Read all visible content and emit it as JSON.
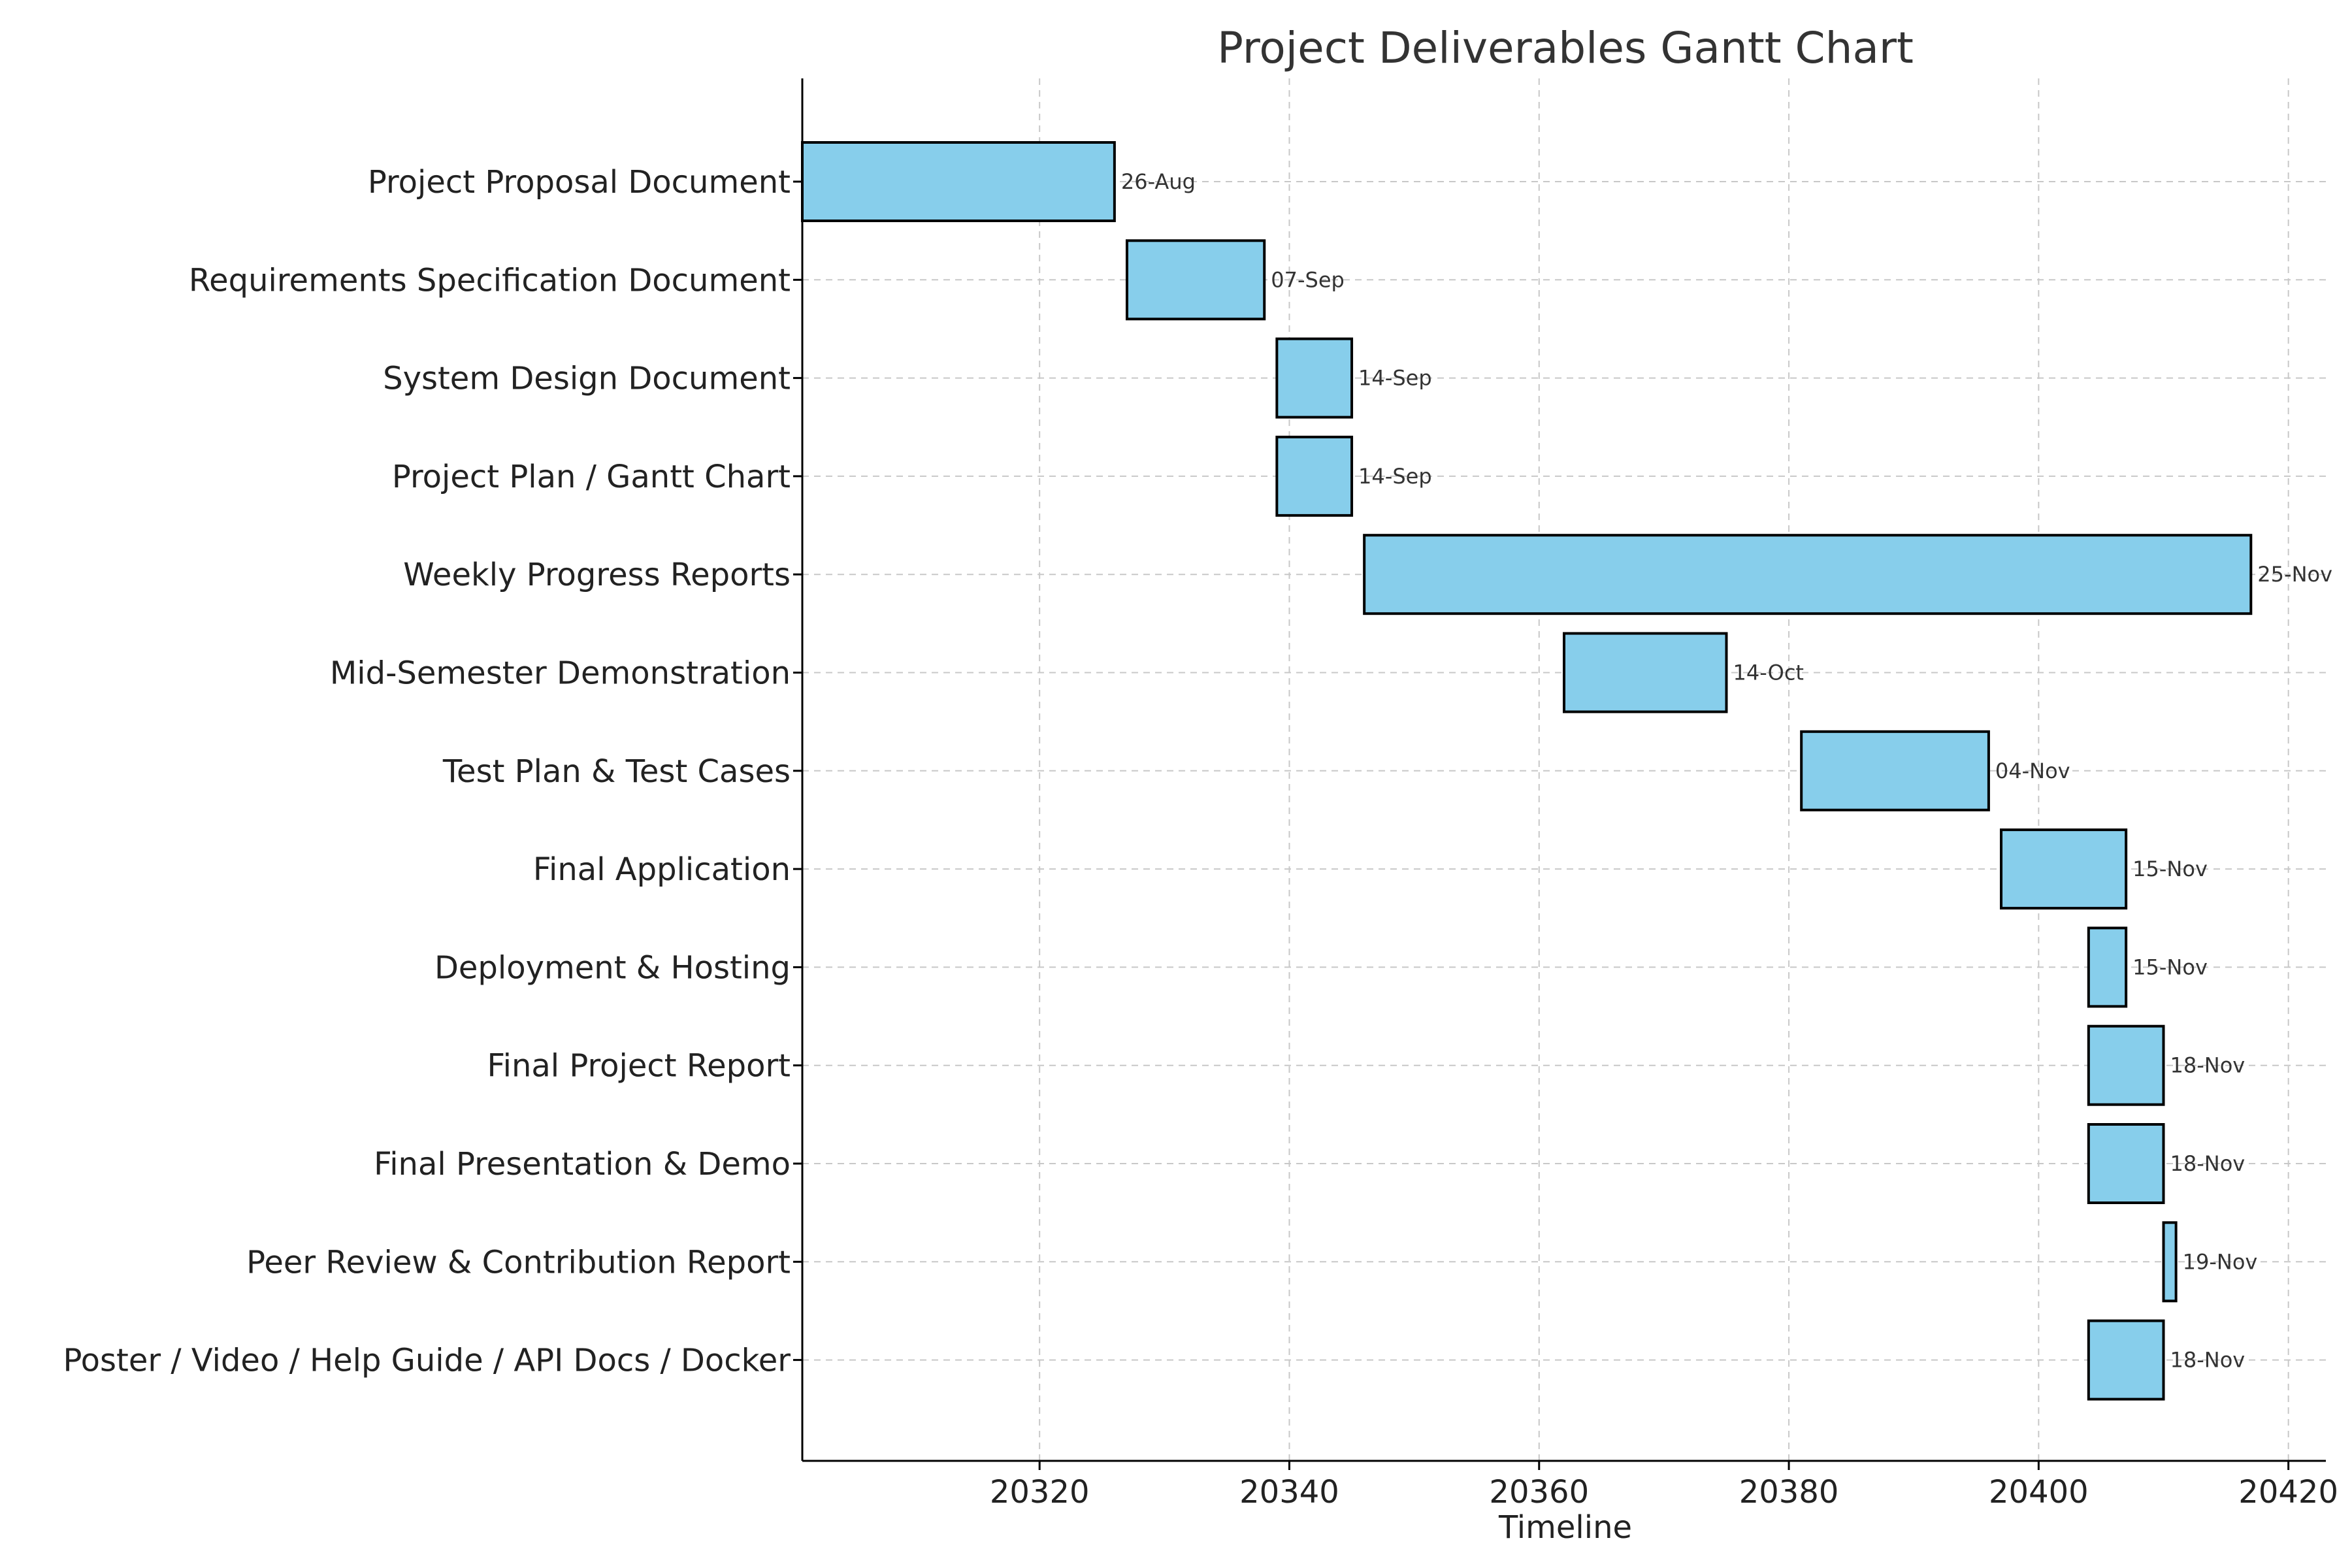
{
  "chart_data": {
    "type": "gantt",
    "title": "Project Deliverables Gantt Chart",
    "xlabel": "Timeline",
    "ylabel": "",
    "xlim": [
      20301,
      20423
    ],
    "xticks": [
      20320,
      20340,
      20360,
      20380,
      20400,
      20420
    ],
    "grid": true,
    "bar_color": "#87CEEB",
    "tasks": [
      {
        "name": "Project Proposal Document",
        "start": 20301,
        "end": 20326,
        "end_label": "26-Aug"
      },
      {
        "name": "Requirements Specification Document",
        "start": 20327,
        "end": 20338,
        "end_label": "07-Sep"
      },
      {
        "name": "System Design Document",
        "start": 20339,
        "end": 20345,
        "end_label": "14-Sep"
      },
      {
        "name": "Project Plan / Gantt Chart",
        "start": 20339,
        "end": 20345,
        "end_label": "14-Sep"
      },
      {
        "name": "Weekly Progress Reports",
        "start": 20346,
        "end": 20417,
        "end_label": "25-Nov"
      },
      {
        "name": "Mid-Semester Demonstration",
        "start": 20362,
        "end": 20375,
        "end_label": "14-Oct"
      },
      {
        "name": "Test Plan & Test Cases",
        "start": 20381,
        "end": 20396,
        "end_label": "04-Nov"
      },
      {
        "name": "Final Application",
        "start": 20397,
        "end": 20407,
        "end_label": "15-Nov"
      },
      {
        "name": "Deployment & Hosting",
        "start": 20404,
        "end": 20407,
        "end_label": "15-Nov"
      },
      {
        "name": "Final Project Report",
        "start": 20404,
        "end": 20410,
        "end_label": "18-Nov"
      },
      {
        "name": "Final Presentation & Demo",
        "start": 20404,
        "end": 20410,
        "end_label": "18-Nov"
      },
      {
        "name": "Peer Review & Contribution Report",
        "start": 20410,
        "end": 20411,
        "end_label": "19-Nov"
      },
      {
        "name": "Poster / Video / Help Guide / API Docs / Docker",
        "start": 20404,
        "end": 20410,
        "end_label": "18-Nov"
      }
    ]
  }
}
